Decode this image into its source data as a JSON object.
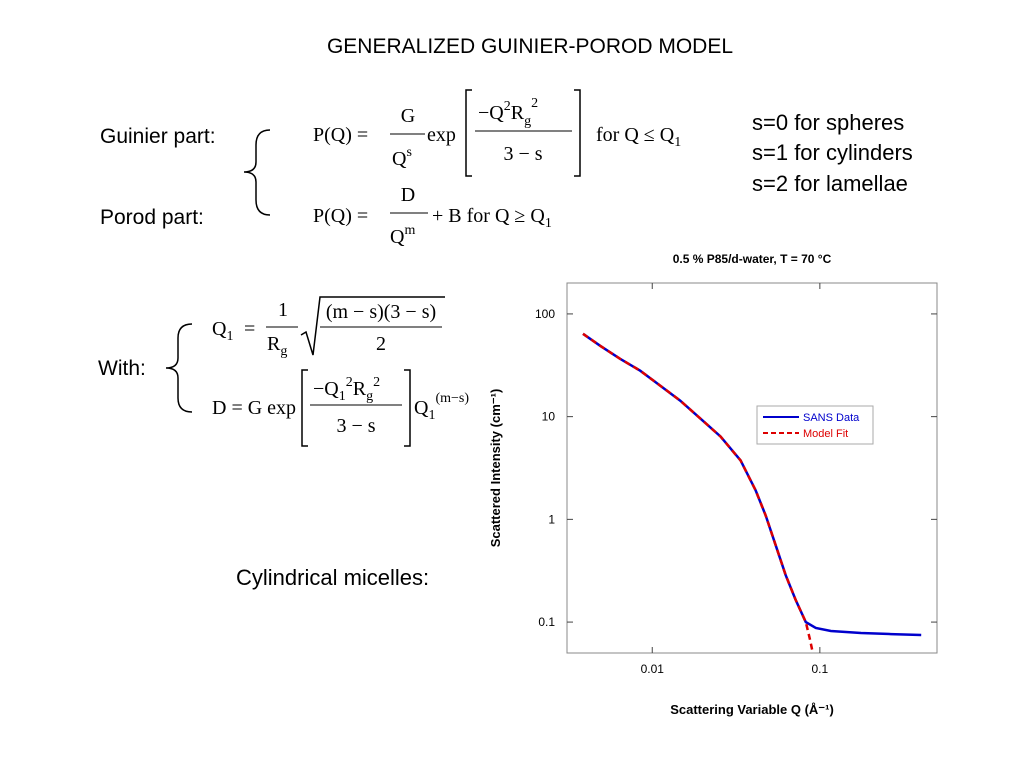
{
  "title": "GENERALIZED GUINIER-POROD MODEL",
  "labels": {
    "guinier": "Guinier part:",
    "porod": "Porod part:",
    "with": "With:",
    "micelles": "Cylindrical micelles:"
  },
  "notes": [
    "s=0 for spheres",
    "s=1 for cylinders",
    "s=2 for lamellae"
  ],
  "equations": {
    "guinier": {
      "lhs": "P(Q) =",
      "num": "G",
      "den": "Q",
      "den_sup": "s",
      "exp": "exp",
      "inner_num": [
        "−Q",
        "2",
        "R",
        "g",
        "2"
      ],
      "inner_den": "3 − s",
      "cond": "for  Q ≤ Q",
      "cond_sub": "1"
    },
    "porod": {
      "lhs": "P(Q) =",
      "num": "D",
      "den": "Q",
      "den_sup": "m",
      "rest": "+ B  for  Q ≥ Q",
      "rest_sub": "1"
    },
    "q1": {
      "lhs": "Q",
      "lhs_sub": "1",
      "eq": "=",
      "num": "1",
      "den": "R",
      "den_sub": "g",
      "root_num": "(m − s)(3 − s)",
      "root_den": "2"
    },
    "d": {
      "lhs": "D = G exp",
      "inner_num": [
        "−Q",
        "1",
        "2",
        "R",
        "g",
        "2"
      ],
      "inner_den": "3 − s",
      "tail": "Q",
      "tail_sub": "1",
      "tail_sup": "(m−s)"
    }
  },
  "chart_data": {
    "type": "line",
    "title": "0.5 % P85/d-water, T = 70 °C",
    "xlabel": "Scattering Variable Q (Å⁻¹)",
    "ylabel": "Scattered Intensity (cm⁻¹)",
    "xscale": "log",
    "yscale": "log",
    "xlim": [
      0.0031,
      0.5
    ],
    "ylim": [
      0.05,
      200
    ],
    "xticks": [
      0.01,
      0.1
    ],
    "yticks": [
      0.1,
      1,
      10,
      100
    ],
    "legend": "right",
    "series": [
      {
        "name": "SANS Data",
        "color": "#0000cc",
        "linestyle": "solid",
        "x": [
          0.00386,
          0.00489,
          0.00643,
          0.00848,
          0.01117,
          0.01471,
          0.01938,
          0.02553,
          0.03365,
          0.0414,
          0.04752,
          0.05455,
          0.06256,
          0.07178,
          0.08241,
          0.0946,
          0.1164,
          0.1761,
          0.2661,
          0.4027
        ],
        "values": [
          64,
          48.9,
          36.6,
          28,
          20,
          14.3,
          9.56,
          6.4,
          3.74,
          1.91,
          1.09,
          0.559,
          0.286,
          0.164,
          0.1,
          0.0875,
          0.0818,
          0.0782,
          0.0764,
          0.0748
        ]
      },
      {
        "name": "Model Fit",
        "color": "#dd0000",
        "linestyle": "dashed",
        "x": [
          0.00386,
          0.00489,
          0.00643,
          0.00848,
          0.01117,
          0.01471,
          0.01938,
          0.02553,
          0.03365,
          0.0414,
          0.04752,
          0.05455,
          0.06256,
          0.07178,
          0.08241,
          0.0875,
          0.0908
        ],
        "values": [
          64,
          48.9,
          36.6,
          28,
          20,
          14.3,
          9.56,
          6.4,
          3.74,
          1.91,
          1.09,
          0.559,
          0.286,
          0.164,
          0.1,
          0.0669,
          0.05
        ]
      }
    ]
  }
}
